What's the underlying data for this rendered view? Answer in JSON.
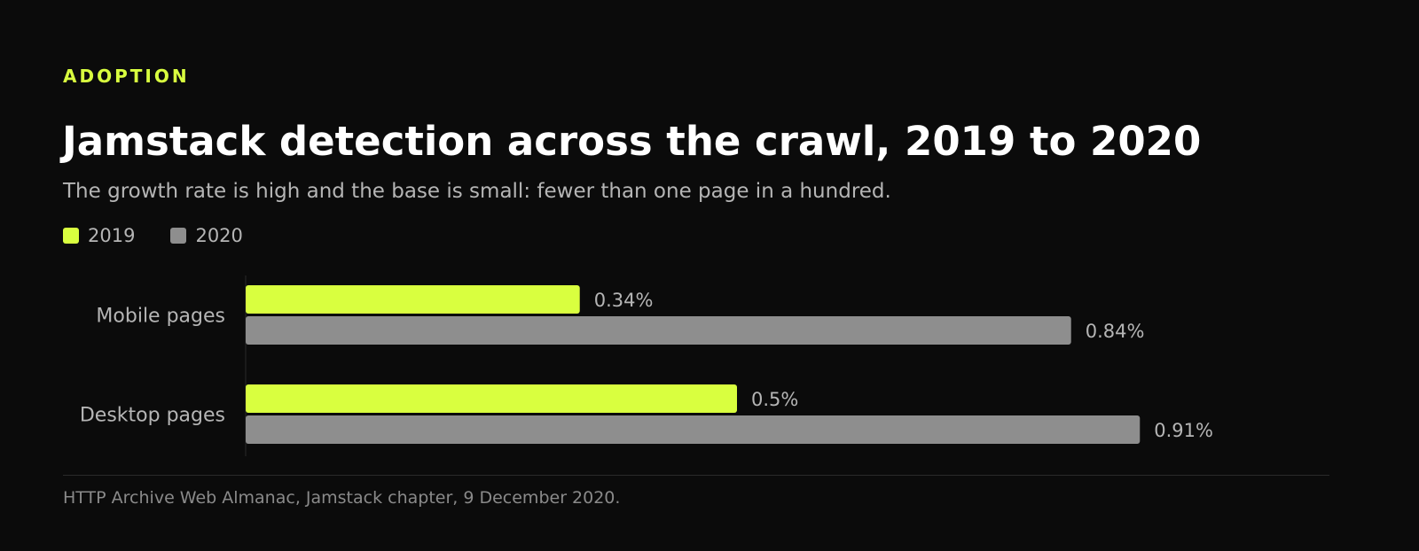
{
  "eyebrow": "ADOPTION",
  "title": "Jamstack detection across the crawl, 2019 to 2020",
  "subtitle": "The growth rate is high and the base is small: fewer than one page in a hundred.",
  "source": "HTTP Archive Web Almanac, Jamstack chapter, 9 December 2020.",
  "colors": {
    "accent": "#d9ff3f",
    "series_2020": "#8e8e8e",
    "text_muted": "#b5b5b5",
    "background": "#0b0b0b"
  },
  "chart_data": {
    "type": "bar",
    "orientation": "horizontal",
    "categories": [
      "Mobile pages",
      "Desktop pages"
    ],
    "series": [
      {
        "name": "2019",
        "values": [
          0.34,
          0.5
        ],
        "labels": [
          "0.34%",
          "0.5%"
        ],
        "color": "#d9ff3f"
      },
      {
        "name": "2020",
        "values": [
          0.84,
          0.91
        ],
        "labels": [
          "0.84%",
          "0.91%"
        ],
        "color": "#8e8e8e"
      }
    ],
    "unit": "%",
    "xlim": [
      0,
      1
    ],
    "grid": false,
    "legend": "top-left"
  }
}
